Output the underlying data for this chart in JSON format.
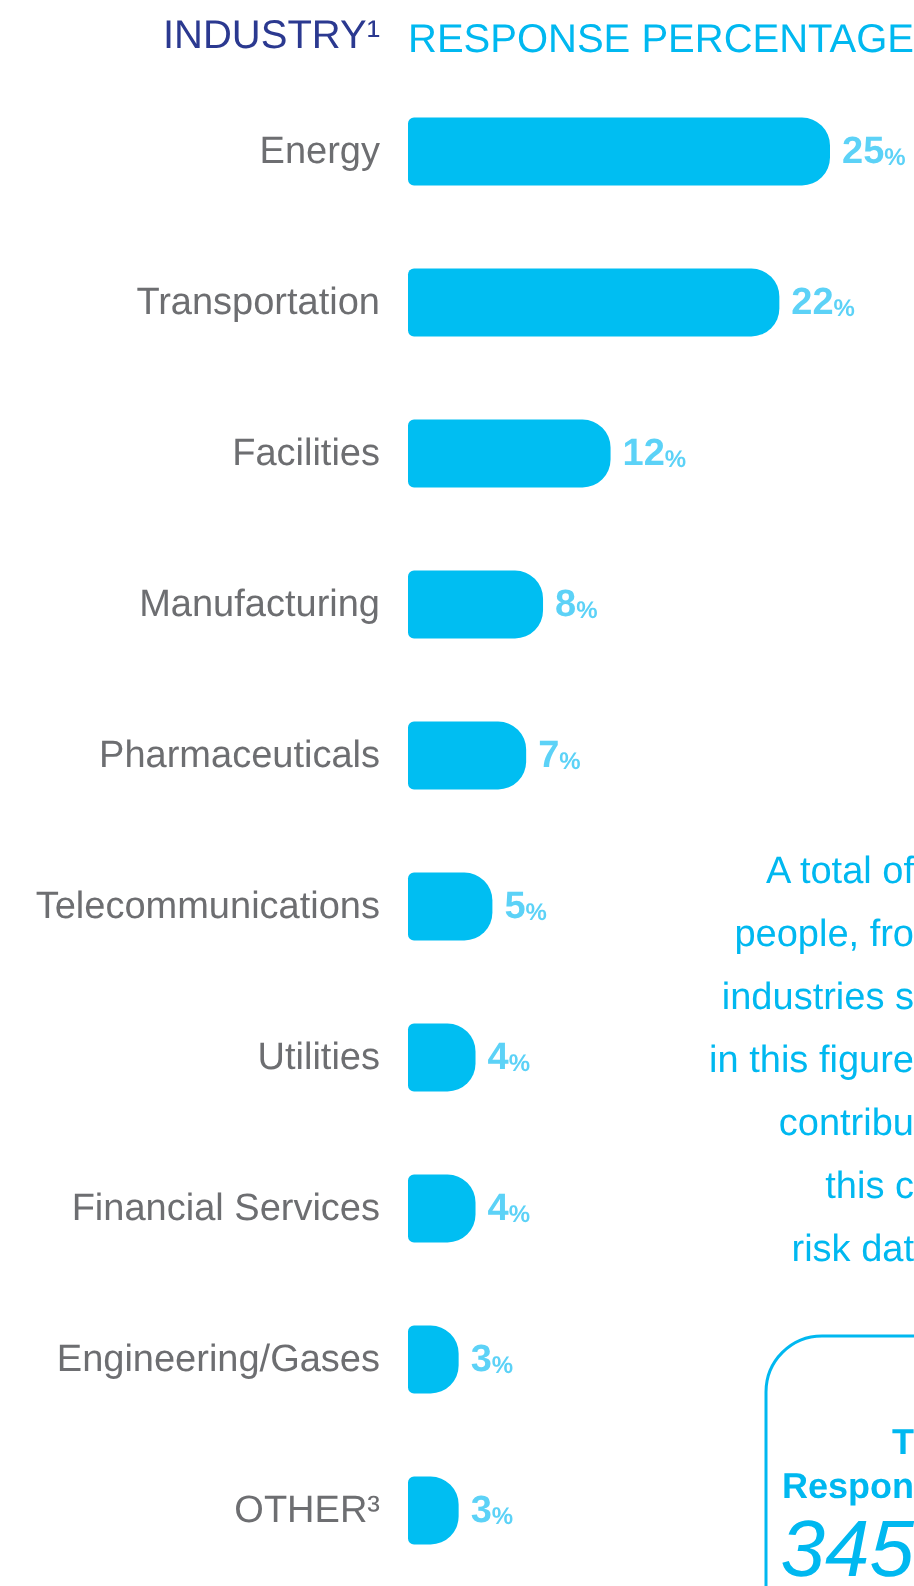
{
  "chart_data": {
    "type": "bar",
    "orientation": "horizontal",
    "ylabel": "INDUSTRY¹",
    "xlabel": "RESPONSE PERCENTAGE",
    "categories": [
      "Energy",
      "Transportation",
      "Facilities",
      "Manufacturing",
      "Pharmaceuticals",
      "Telecommunications",
      "Utilities",
      "Financial Services",
      "Engineering/Gases",
      "OTHER³"
    ],
    "values": [
      25,
      22,
      12,
      8,
      7,
      5,
      4,
      4,
      3,
      3
    ],
    "value_labels": [
      "25%",
      "22%",
      "12%",
      "8%",
      "7%",
      "5%",
      "4%",
      "4%",
      "3%",
      "3%"
    ],
    "color": "#00bef2",
    "tick_labels": "y",
    "annotations": [
      "A total of\npeople, fro\nindustries s\nin this figure\ncontribu\nthis c\nrisk dat",
      "T",
      "Respon",
      "345"
    ]
  }
}
